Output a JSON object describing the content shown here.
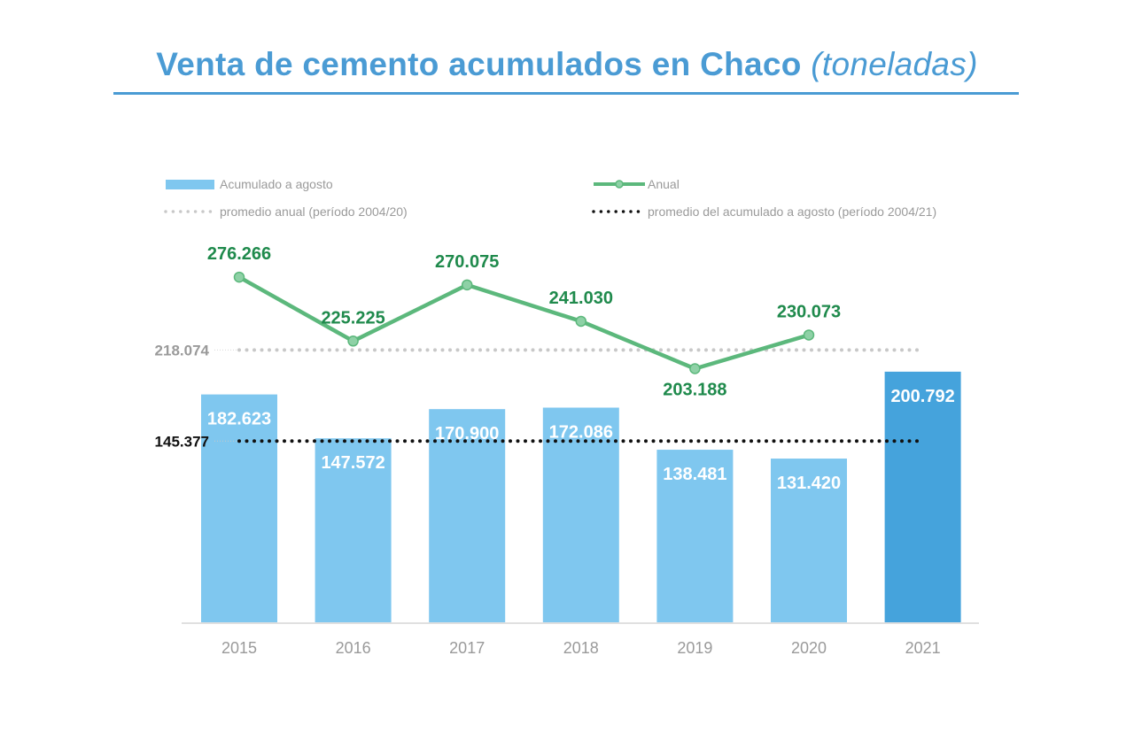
{
  "title": {
    "main": "Venta de cemento acumulados en Chaco",
    "sub": "(toneladas)"
  },
  "chart_data": {
    "type": "bar",
    "categories": [
      "2015",
      "2016",
      "2017",
      "2018",
      "2019",
      "2020",
      "2021"
    ],
    "series": [
      {
        "name": "Acumulado a agosto",
        "type": "bar",
        "values": [
          182623,
          147572,
          170900,
          172086,
          138481,
          131420,
          200792
        ],
        "labels": [
          "182.623",
          "147.572",
          "170.900",
          "172.086",
          "138.481",
          "131.420",
          "200.792"
        ],
        "color": "#7fc7ef",
        "highlight_color": "#45a3dc"
      },
      {
        "name": "Anual",
        "type": "line",
        "values": [
          276266,
          225225,
          270075,
          241030,
          203188,
          230073,
          null
        ],
        "labels": [
          "276.266",
          "225.225",
          "270.075",
          "241.030",
          "203.188",
          "230.073",
          ""
        ],
        "color": "#5cb87c"
      }
    ],
    "reference_lines": [
      {
        "name": "promedio anual (período 2004/20)",
        "value": 218074,
        "label": "218.074",
        "style": "dotted",
        "color": "#c8c8c8"
      },
      {
        "name": "promedio del acumulado a agosto (período 2004/21)",
        "value": 145377,
        "label": "145.377",
        "style": "dotted",
        "color": "#111111"
      }
    ],
    "legend": {
      "placement": "top",
      "items": [
        {
          "label": "Acumulado a agosto",
          "kind": "bar",
          "color": "#7fc7ef"
        },
        {
          "label": "Anual",
          "kind": "line",
          "color": "#5cb87c"
        },
        {
          "label": "promedio anual (período 2004/20)",
          "kind": "dotted",
          "color": "#c8c8c8"
        },
        {
          "label": "promedio del acumulado a agosto (período 2004/21)",
          "kind": "dotted",
          "color": "#111111"
        }
      ]
    },
    "ylim": [
      0,
      300000
    ],
    "grid": false
  }
}
